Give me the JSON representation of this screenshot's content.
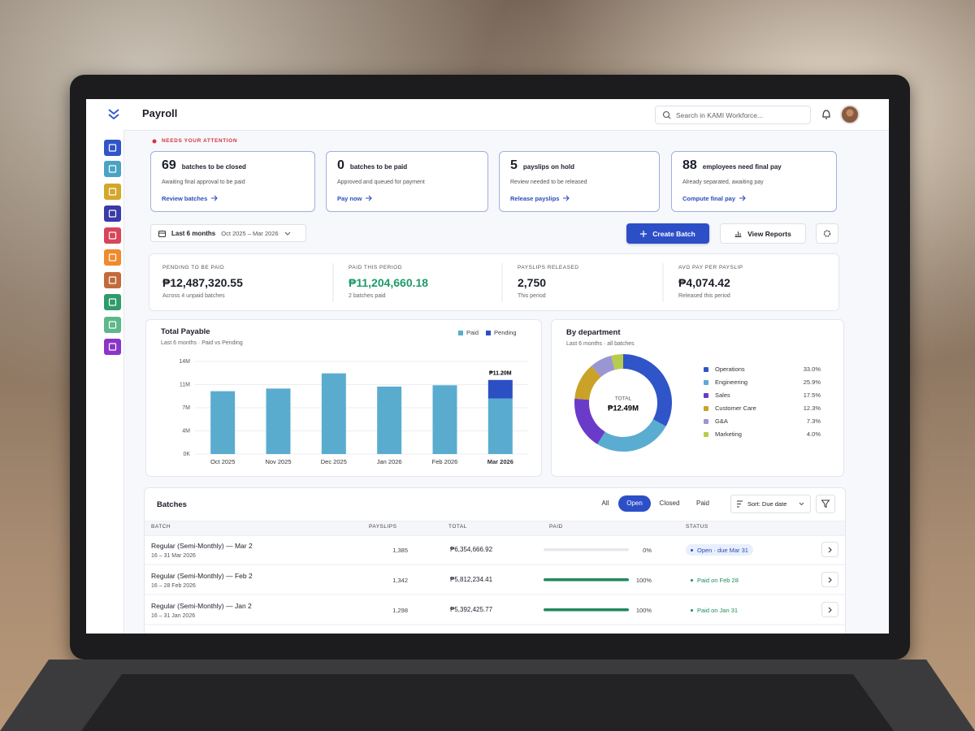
{
  "header": {
    "title": "Payroll",
    "search_placeholder": "Search in KAMI Workforce..."
  },
  "attention": {
    "label": "NEEDS YOUR ATTENTION",
    "cards": [
      {
        "count": 69,
        "title": "batches to be closed",
        "description": "Awaiting final approval to be paid",
        "link": "Review batches"
      },
      {
        "count": 0,
        "title": "batches to be paid",
        "description": "Approved and queued for payment",
        "link": "Pay now"
      },
      {
        "count": 5,
        "title": "payslips on hold",
        "description": "Review needed to be released",
        "link": "Release payslips"
      },
      {
        "count": 88,
        "title": "employees need final pay",
        "description": "Already separated, awaiting pay",
        "link": "Compute final pay"
      }
    ]
  },
  "toolbar": {
    "range": "Last 6 months",
    "dates": "Oct 2025 – Mar 2026",
    "create": "Create Batch",
    "reports": "View Reports"
  },
  "stats": [
    {
      "label": "PENDING TO BE PAID",
      "value": "₱12,487,320.55",
      "note": "Across 4 unpaid batches",
      "color": "#1c1f2a"
    },
    {
      "label": "PAID THIS PERIOD",
      "value": "₱11,204,660.18",
      "note": "2 batches paid",
      "color": "#1e9a6a"
    },
    {
      "label": "PAYSLIPS RELEASED",
      "value": "2,750",
      "note": "This period",
      "color": "#1c1f2a"
    },
    {
      "label": "AVG PAY PER PAYSLIP",
      "value": "₱4,074.42",
      "note": "Released this period",
      "color": "#1c1f2a"
    }
  ],
  "chart_data": [
    {
      "type": "bar",
      "title": "Total Payable",
      "subtitle": "Last 6 months · Paid vs Pending",
      "stacked": true,
      "categories": [
        "Oct 2025",
        "Nov 2025",
        "Dec 2025",
        "Jan 2026",
        "Feb 2026",
        "Mar 2026"
      ],
      "series": [
        {
          "name": "Paid",
          "color": "#5aaccf",
          "values": [
            9500000,
            9900000,
            12200000,
            10200000,
            10400000,
            8400000
          ]
        },
        {
          "name": "Pending",
          "color": "#2c4fc4",
          "values": [
            0,
            0,
            0,
            0,
            0,
            2800000
          ]
        }
      ],
      "ylim": [
        0,
        14000000
      ],
      "yticks": [
        {
          "value": 0,
          "label": "0K"
        },
        {
          "value": 3500000,
          "label": "4M"
        },
        {
          "value": 7000000,
          "label": "7M"
        },
        {
          "value": 10500000,
          "label": "11M"
        },
        {
          "value": 14000000,
          "label": "14M"
        }
      ],
      "grid": true,
      "annotations": [
        {
          "x": "Mar 2026",
          "text": "₱11.20M"
        }
      ]
    },
    {
      "type": "pie",
      "title": "By department",
      "subtitle": "Last 6 months · all batches",
      "center_label": "TOTAL",
      "center_value": "₱12.49M",
      "categories": [
        "Operations",
        "Engineering",
        "Sales",
        "Customer Care",
        "G&A",
        "Marketing"
      ],
      "values": [
        33.0,
        25.9,
        17.5,
        12.3,
        7.3,
        4.0
      ],
      "value_labels": [
        "33.0%",
        "25.9%",
        "17.5%",
        "12.3%",
        "7.3%",
        "4.0%"
      ],
      "colors": [
        "#2f55c8",
        "#5aacd0",
        "#6a3bc8",
        "#c9a227",
        "#9a96d4",
        "#b7cc4a"
      ]
    }
  ],
  "batches": {
    "title": "Batches",
    "filters": [
      "All",
      "Open",
      "Closed",
      "Paid"
    ],
    "active": "Open",
    "sort": "Sort: Due date",
    "columns": [
      "BATCH",
      "PAYSLIPS",
      "TOTAL",
      "PAID",
      "STATUS"
    ],
    "rows": [
      {
        "name": "Regular (Semi-Monthly) — Mar 2",
        "period": "16 – 31 Mar 2026",
        "payslips": "1,385",
        "total": "₱6,354,666.92",
        "paid": 0,
        "paid_label": "0%",
        "status": "Open · due Mar 31",
        "status_color": "#2a4db8"
      },
      {
        "name": "Regular (Semi-Monthly) — Feb 2",
        "period": "16 – 28 Feb 2026",
        "payslips": "1,342",
        "total": "₱5,812,234.41",
        "paid": 100,
        "paid_label": "100%",
        "status": "Paid on Feb 28",
        "status_color": "#1f8a5a"
      },
      {
        "name": "Regular (Semi-Monthly) — Jan 2",
        "period": "16 – 31 Jan 2026",
        "payslips": "1,298",
        "total": "₱5,392,425.77",
        "paid": 100,
        "paid_label": "100%",
        "status": "Paid on Jan 31",
        "status_color": "#1f8a5a"
      }
    ]
  }
}
